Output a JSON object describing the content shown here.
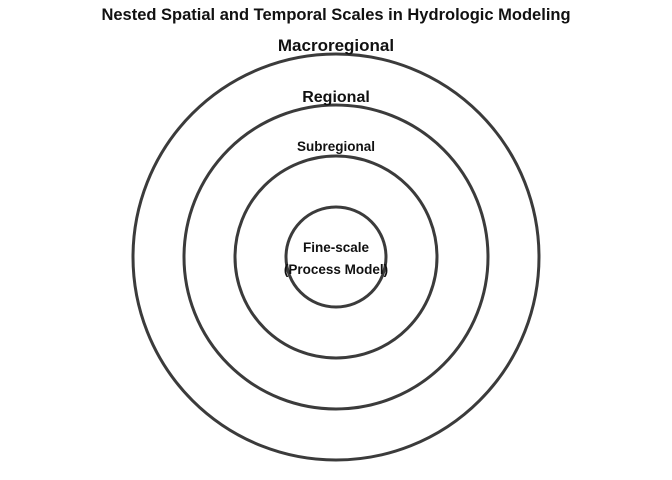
{
  "title": "Nested Spatial and Temporal Scales in Hydrologic Modeling",
  "style": {
    "ring_color": "#3b3b3b",
    "text_color": "#111111",
    "background": "#ffffff"
  },
  "levels": [
    {
      "id": "macroregional",
      "label": "Macroregional"
    },
    {
      "id": "regional",
      "label": "Regional"
    },
    {
      "id": "subregional",
      "label": "Subregional"
    },
    {
      "id": "fine-scale",
      "label": "Fine-scale",
      "sublabel": "(Process Model)"
    }
  ]
}
